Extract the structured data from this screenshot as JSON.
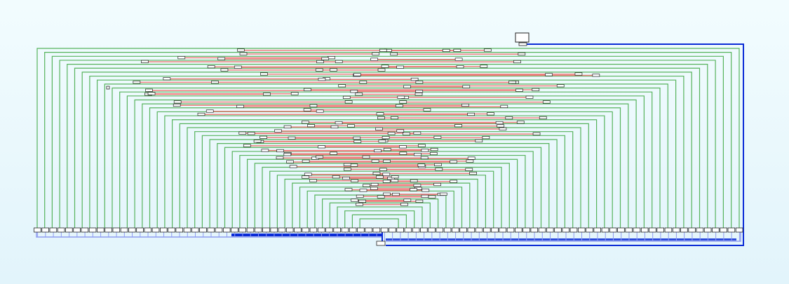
{
  "diagram": {
    "type": "wiring-graph",
    "colors": {
      "background": "#eaf8fc",
      "green_wire": "#56b35c",
      "red_link": "#ef8080",
      "blue_bus": "#0a2bd6",
      "blue_bus_light": "#8f9cf0",
      "node_fill": "#ffffff",
      "node_stroke": "#222222"
    },
    "structure": {
      "root_nodes": 1,
      "bus_nodes": 2,
      "bottom_row_nodes": 90,
      "nested_wire_loops": 44,
      "link_nodes": 118
    }
  }
}
